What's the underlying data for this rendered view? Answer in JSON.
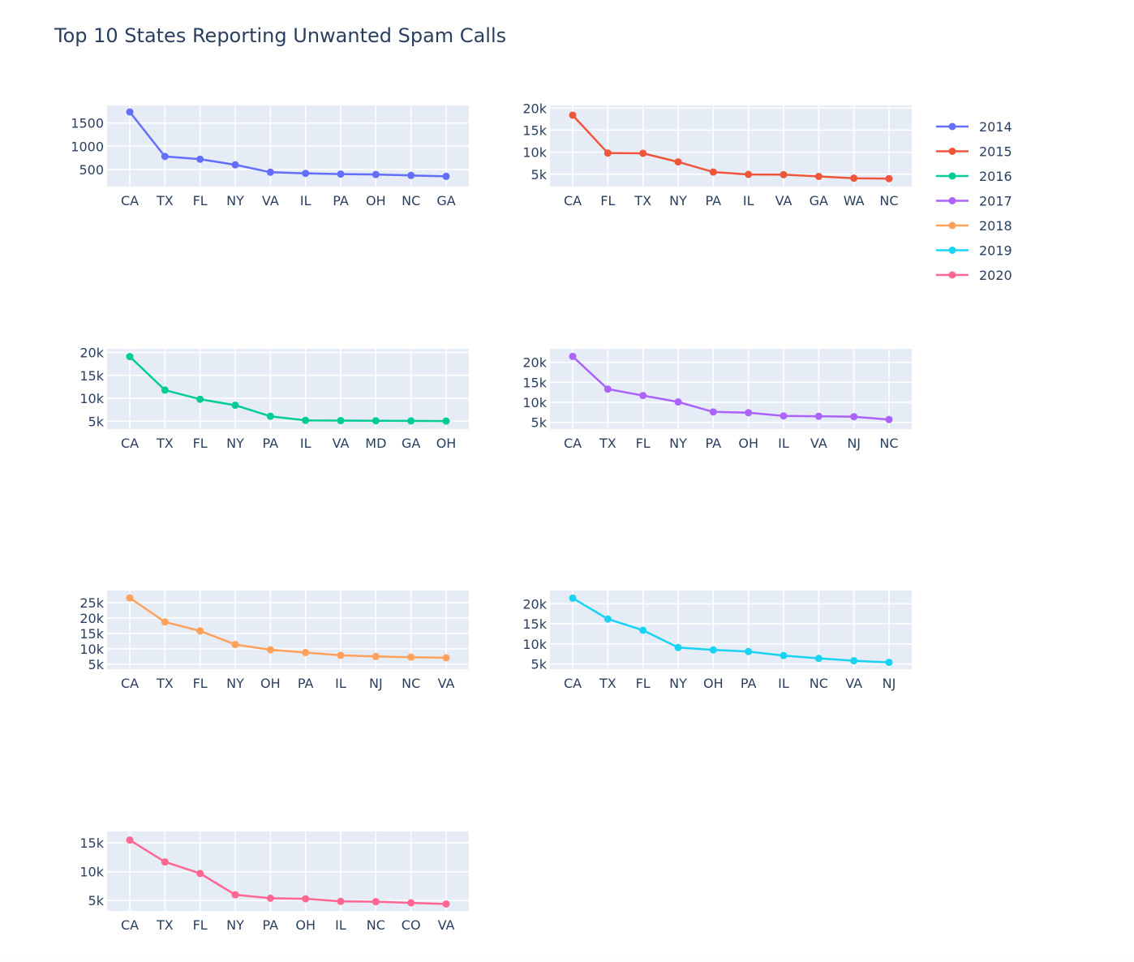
{
  "chart_data": {
    "title": "Top 10 States Reporting Unwanted Spam Calls",
    "type": "line",
    "legend_position": "top-right",
    "grid": true,
    "colors": {
      "2014": "#636efa",
      "2015": "#ef553b",
      "2016": "#00cc96",
      "2017": "#ab63fa",
      "2018": "#ffa15a",
      "2019": "#19d3f3",
      "2020": "#ff6692"
    },
    "subplots": [
      {
        "name": "2014",
        "color": "#636efa",
        "categories": [
          "CA",
          "TX",
          "FL",
          "NY",
          "VA",
          "IL",
          "PA",
          "OH",
          "NC",
          "GA"
        ],
        "values": [
          1740,
          780,
          720,
          600,
          440,
          415,
          400,
          390,
          370,
          350
        ],
        "ylim": [
          130,
          1880
        ],
        "yticks": [
          500,
          1000,
          1500
        ],
        "ytick_labels": [
          "500",
          "1000",
          "1500"
        ]
      },
      {
        "name": "2015",
        "color": "#ef553b",
        "categories": [
          "CA",
          "FL",
          "TX",
          "NY",
          "PA",
          "IL",
          "VA",
          "GA",
          "WA",
          "NC"
        ],
        "values": [
          18400,
          9800,
          9750,
          7800,
          5500,
          4950,
          4900,
          4500,
          4100,
          4000
        ],
        "ylim": [
          2200,
          20600
        ],
        "yticks": [
          5000,
          10000,
          15000,
          20000
        ],
        "ytick_labels": [
          "5k",
          "10k",
          "15k",
          "20k"
        ]
      },
      {
        "name": "2016",
        "color": "#00cc96",
        "categories": [
          "CA",
          "TX",
          "FL",
          "NY",
          "PA",
          "IL",
          "VA",
          "MD",
          "GA",
          "OH"
        ],
        "values": [
          19100,
          11800,
          9800,
          8500,
          6100,
          5200,
          5150,
          5120,
          5080,
          5050
        ],
        "ylim": [
          3300,
          20800
        ],
        "yticks": [
          5000,
          10000,
          15000,
          20000
        ],
        "ytick_labels": [
          "5k",
          "10k",
          "15k",
          "20k"
        ]
      },
      {
        "name": "2017",
        "color": "#ab63fa",
        "categories": [
          "CA",
          "TX",
          "FL",
          "NY",
          "PA",
          "OH",
          "IL",
          "VA",
          "NJ",
          "NC"
        ],
        "values": [
          21500,
          13300,
          11700,
          10100,
          7600,
          7400,
          6600,
          6500,
          6400,
          5700
        ],
        "ylim": [
          3300,
          23400
        ],
        "yticks": [
          5000,
          10000,
          15000,
          20000
        ],
        "ytick_labels": [
          "5k",
          "10k",
          "15k",
          "20k"
        ]
      },
      {
        "name": "2018",
        "color": "#ffa15a",
        "categories": [
          "CA",
          "TX",
          "FL",
          "NY",
          "OH",
          "PA",
          "IL",
          "NJ",
          "NC",
          "VA"
        ],
        "values": [
          26500,
          18700,
          15800,
          11400,
          9700,
          8800,
          7900,
          7500,
          7300,
          7100
        ],
        "ylim": [
          3400,
          28900
        ],
        "yticks": [
          5000,
          10000,
          15000,
          20000,
          25000
        ],
        "ytick_labels": [
          "5k",
          "10k",
          "15k",
          "20k",
          "25k"
        ]
      },
      {
        "name": "2019",
        "color": "#19d3f3",
        "categories": [
          "CA",
          "TX",
          "FL",
          "NY",
          "OH",
          "PA",
          "IL",
          "NC",
          "VA",
          "NJ"
        ],
        "values": [
          21400,
          16200,
          13400,
          9100,
          8500,
          8100,
          7100,
          6400,
          5800,
          5400
        ],
        "ylim": [
          3700,
          23300
        ],
        "yticks": [
          5000,
          10000,
          15000,
          20000
        ],
        "ytick_labels": [
          "5k",
          "10k",
          "15k",
          "20k"
        ]
      },
      {
        "name": "2020",
        "color": "#ff6692",
        "categories": [
          "CA",
          "TX",
          "FL",
          "NY",
          "PA",
          "OH",
          "IL",
          "NC",
          "CO",
          "VA"
        ],
        "values": [
          15500,
          11700,
          9700,
          6000,
          5400,
          5300,
          4850,
          4800,
          4600,
          4400
        ],
        "ylim": [
          3200,
          17000
        ],
        "yticks": [
          5000,
          10000,
          15000
        ],
        "ytick_labels": [
          "5k",
          "10k",
          "15k"
        ]
      }
    ]
  }
}
